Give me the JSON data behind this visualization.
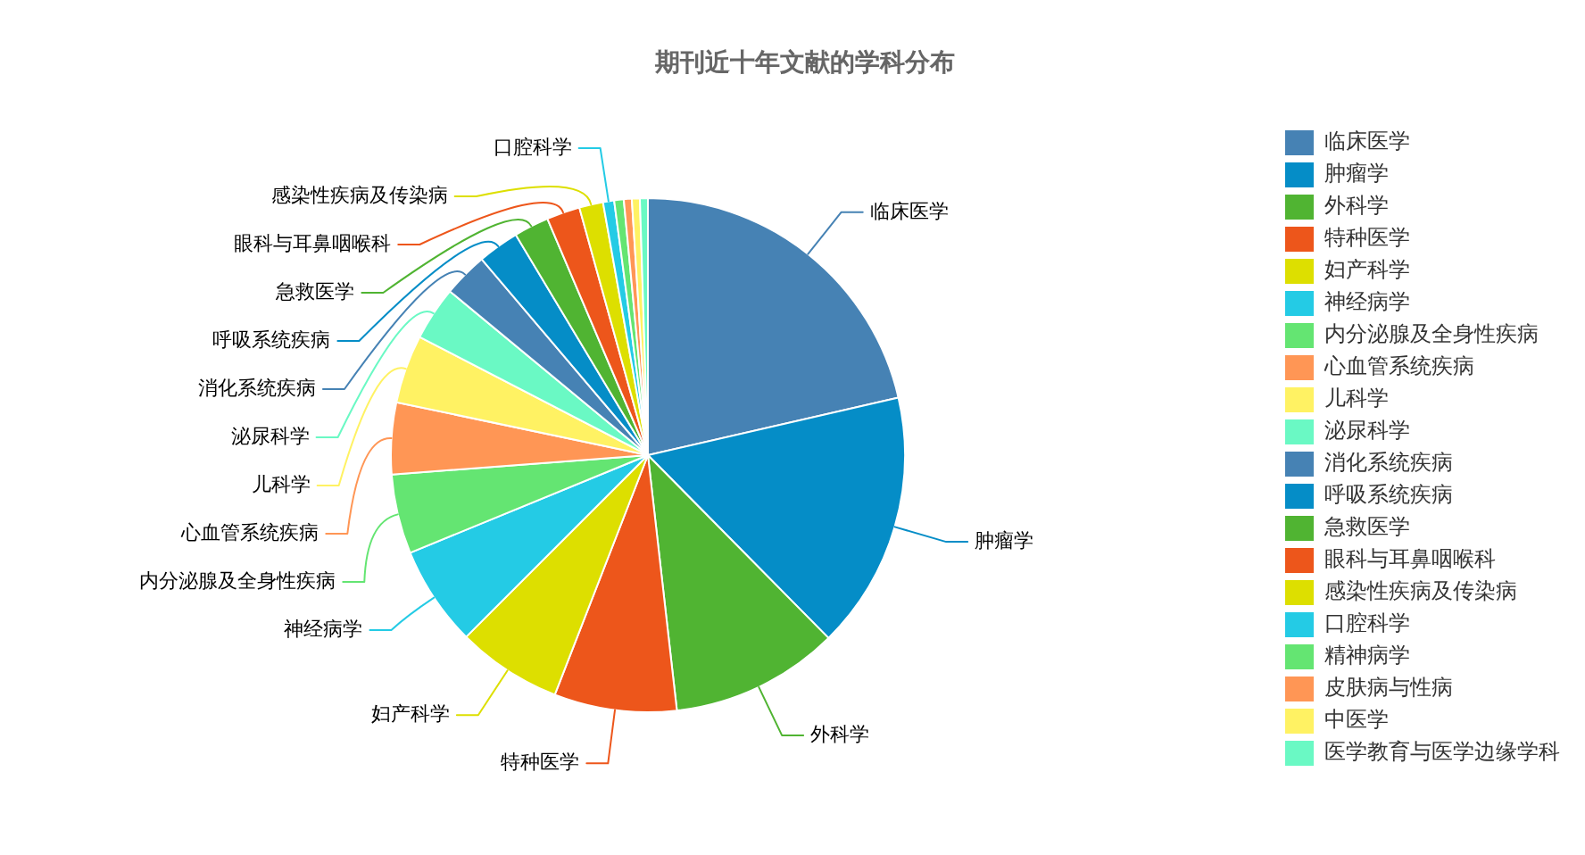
{
  "chart_data": {
    "type": "pie",
    "title": "期刊近十年文献的学科分布",
    "categories": [
      "临床医学",
      "肿瘤学",
      "外科学",
      "特种医学",
      "妇产科学",
      "神经病学",
      "内分泌腺及全身性疾病",
      "心血管系统疾病",
      "儿科学",
      "泌尿科学",
      "消化系统疾病",
      "呼吸系统疾病",
      "急救医学",
      "眼科与耳鼻咽喉科",
      "感染性疾病及传染病",
      "口腔科学",
      "精神病学",
      "皮肤病与性病",
      "中医学",
      "医学教育与医学边缘学科"
    ],
    "values": [
      21.4,
      16.2,
      10.6,
      7.7,
      6.6,
      6.3,
      5.0,
      4.5,
      4.3,
      3.4,
      2.8,
      2.6,
      2.2,
      2.1,
      1.5,
      0.7,
      0.6,
      0.5,
      0.5,
      0.5
    ],
    "colors": [
      "#4682b4",
      "#058dc7",
      "#50b432",
      "#ed561b",
      "#dddf00",
      "#24cbe5",
      "#64e572",
      "#ff9655",
      "#fff263",
      "#6af9c4",
      "#4682b4",
      "#058dc7",
      "#50b432",
      "#ed561b",
      "#dddf00",
      "#24cbe5",
      "#64e572",
      "#ff9655",
      "#fff263",
      "#6af9c4"
    ],
    "legend": "right"
  }
}
